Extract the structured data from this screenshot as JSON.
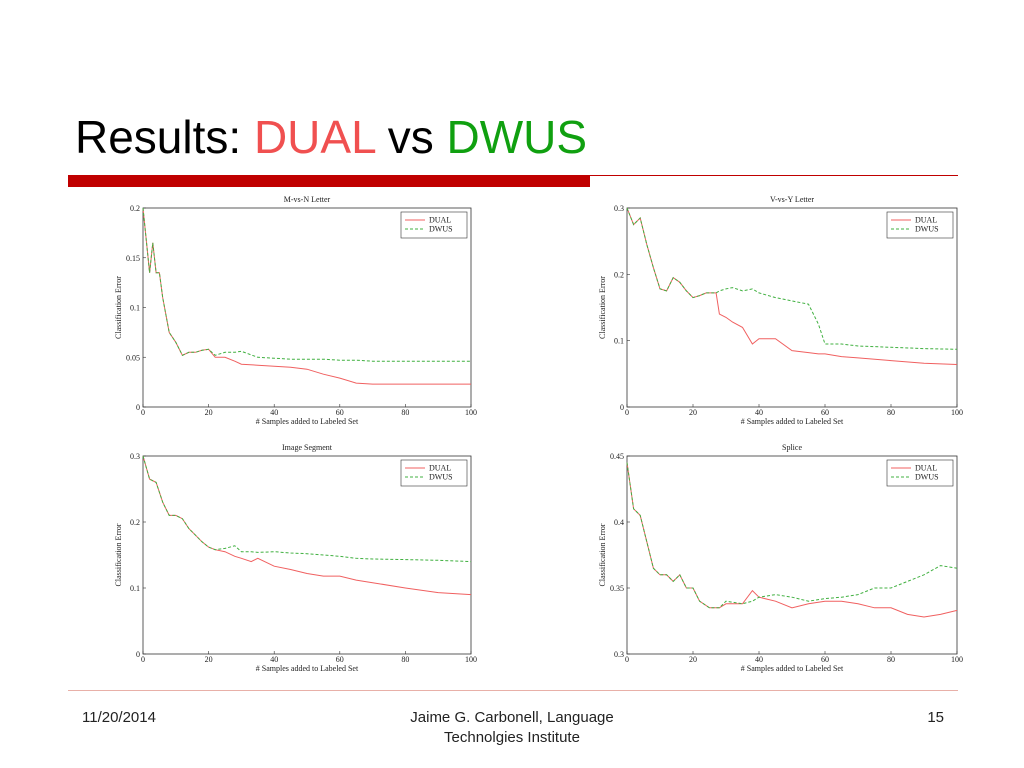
{
  "slide": {
    "title": [
      "Results:",
      "DUAL",
      "vs",
      "DWUS"
    ]
  },
  "chart_data": [
    {
      "type": "line",
      "title": "M-vs-N Letter",
      "x_label": "# Samples added to Labeled Set",
      "y_label": "Classification Error",
      "x": [
        0,
        2,
        3,
        4,
        5,
        6,
        8,
        10,
        12,
        14,
        16,
        18,
        20,
        22,
        25,
        28,
        30,
        35,
        40,
        45,
        50,
        55,
        60,
        65,
        70,
        80,
        90,
        100
      ],
      "series": [
        {
          "name": "DUAL",
          "color": "#f06060",
          "dashed": false,
          "values": [
            0.2,
            0.135,
            0.165,
            0.135,
            0.135,
            0.11,
            0.075,
            0.065,
            0.052,
            0.055,
            0.055,
            0.057,
            0.058,
            0.05,
            0.05,
            0.046,
            0.043,
            0.042,
            0.041,
            0.04,
            0.038,
            0.033,
            0.029,
            0.024,
            0.023,
            0.023,
            0.023,
            0.023
          ]
        },
        {
          "name": "DWUS",
          "color": "#40b040",
          "dashed": true,
          "values": [
            0.2,
            0.135,
            0.165,
            0.135,
            0.135,
            0.11,
            0.075,
            0.065,
            0.052,
            0.055,
            0.055,
            0.057,
            0.058,
            0.052,
            0.055,
            0.055,
            0.056,
            0.05,
            0.049,
            0.048,
            0.048,
            0.048,
            0.047,
            0.047,
            0.046,
            0.046,
            0.046,
            0.046
          ]
        }
      ],
      "xlim": [
        0,
        100
      ],
      "xticks": [
        0,
        20,
        40,
        60,
        80,
        100
      ],
      "ylim": [
        0,
        0.2
      ],
      "yticks": [
        0,
        0.05,
        0.1,
        0.15,
        0.2
      ],
      "legend": "upper right"
    },
    {
      "type": "line",
      "title": "V-vs-Y Letter",
      "x_label": "# Samples added to Labeled Set",
      "y_label": "Classification Error",
      "x": [
        0,
        2,
        4,
        6,
        8,
        10,
        12,
        14,
        16,
        18,
        20,
        22,
        24,
        27,
        28,
        30,
        32,
        35,
        38,
        40,
        45,
        50,
        55,
        58,
        60,
        65,
        70,
        80,
        90,
        100
      ],
      "series": [
        {
          "name": "DUAL",
          "color": "#f06060",
          "dashed": false,
          "values": [
            0.3,
            0.275,
            0.285,
            0.245,
            0.21,
            0.178,
            0.175,
            0.195,
            0.188,
            0.175,
            0.165,
            0.168,
            0.172,
            0.172,
            0.14,
            0.135,
            0.128,
            0.12,
            0.095,
            0.103,
            0.103,
            0.085,
            0.082,
            0.08,
            0.08,
            0.076,
            0.074,
            0.07,
            0.066,
            0.064
          ]
        },
        {
          "name": "DWUS",
          "color": "#40b040",
          "dashed": true,
          "values": [
            0.3,
            0.275,
            0.285,
            0.245,
            0.21,
            0.178,
            0.175,
            0.195,
            0.188,
            0.175,
            0.165,
            0.168,
            0.172,
            0.172,
            0.175,
            0.178,
            0.18,
            0.175,
            0.178,
            0.172,
            0.165,
            0.16,
            0.155,
            0.125,
            0.095,
            0.095,
            0.092,
            0.09,
            0.088,
            0.087
          ]
        }
      ],
      "xlim": [
        0,
        100
      ],
      "xticks": [
        0,
        20,
        40,
        60,
        80,
        100
      ],
      "ylim": [
        0,
        0.3
      ],
      "yticks": [
        0,
        0.1,
        0.2,
        0.3
      ],
      "legend": "upper right"
    },
    {
      "type": "line",
      "title": "Image Segment",
      "x_label": "# Samples added to Labeled Set",
      "y_label": "Classification Error",
      "x": [
        0,
        2,
        4,
        6,
        8,
        10,
        12,
        14,
        16,
        18,
        20,
        22,
        25,
        28,
        30,
        33,
        35,
        40,
        45,
        50,
        55,
        60,
        65,
        70,
        80,
        90,
        100
      ],
      "series": [
        {
          "name": "DUAL",
          "color": "#f06060",
          "dashed": false,
          "values": [
            0.3,
            0.265,
            0.26,
            0.23,
            0.21,
            0.21,
            0.205,
            0.19,
            0.18,
            0.17,
            0.162,
            0.158,
            0.155,
            0.148,
            0.145,
            0.14,
            0.145,
            0.133,
            0.128,
            0.122,
            0.118,
            0.118,
            0.112,
            0.108,
            0.1,
            0.093,
            0.09
          ]
        },
        {
          "name": "DWUS",
          "color": "#40b040",
          "dashed": true,
          "values": [
            0.3,
            0.265,
            0.26,
            0.23,
            0.21,
            0.21,
            0.205,
            0.19,
            0.18,
            0.17,
            0.162,
            0.158,
            0.16,
            0.164,
            0.155,
            0.155,
            0.154,
            0.155,
            0.153,
            0.152,
            0.15,
            0.148,
            0.145,
            0.144,
            0.143,
            0.142,
            0.14
          ]
        }
      ],
      "xlim": [
        0,
        100
      ],
      "xticks": [
        0,
        20,
        40,
        60,
        80,
        100
      ],
      "ylim": [
        0,
        0.3
      ],
      "yticks": [
        0,
        0.1,
        0.2,
        0.3
      ],
      "legend": "upper right"
    },
    {
      "type": "line",
      "title": "Splice",
      "x_label": "# Samples added to Labeled Set",
      "y_label": "Classification Error",
      "x": [
        0,
        2,
        4,
        6,
        8,
        10,
        12,
        14,
        16,
        18,
        20,
        22,
        25,
        28,
        30,
        35,
        38,
        40,
        45,
        50,
        55,
        60,
        65,
        70,
        75,
        80,
        85,
        90,
        95,
        100
      ],
      "series": [
        {
          "name": "DUAL",
          "color": "#f06060",
          "dashed": false,
          "values": [
            0.445,
            0.41,
            0.405,
            0.385,
            0.365,
            0.36,
            0.36,
            0.355,
            0.36,
            0.35,
            0.35,
            0.34,
            0.335,
            0.335,
            0.338,
            0.338,
            0.348,
            0.343,
            0.34,
            0.335,
            0.338,
            0.34,
            0.34,
            0.338,
            0.335,
            0.335,
            0.33,
            0.328,
            0.33,
            0.333
          ]
        },
        {
          "name": "DWUS",
          "color": "#40b040",
          "dashed": true,
          "values": [
            0.445,
            0.41,
            0.405,
            0.385,
            0.365,
            0.36,
            0.36,
            0.355,
            0.36,
            0.35,
            0.35,
            0.34,
            0.335,
            0.335,
            0.34,
            0.338,
            0.34,
            0.343,
            0.345,
            0.343,
            0.34,
            0.342,
            0.343,
            0.345,
            0.35,
            0.35,
            0.355,
            0.36,
            0.367,
            0.365
          ]
        }
      ],
      "xlim": [
        0,
        100
      ],
      "xticks": [
        0,
        20,
        40,
        60,
        80,
        100
      ],
      "ylim": [
        0.3,
        0.45
      ],
      "yticks": [
        0.3,
        0.35,
        0.4,
        0.45
      ],
      "legend": "upper right"
    }
  ],
  "footer": {
    "date": "11/20/2014",
    "author": [
      "Jaime G. Carbonell, Language",
      "Technolgies Institute"
    ],
    "page": "15"
  }
}
